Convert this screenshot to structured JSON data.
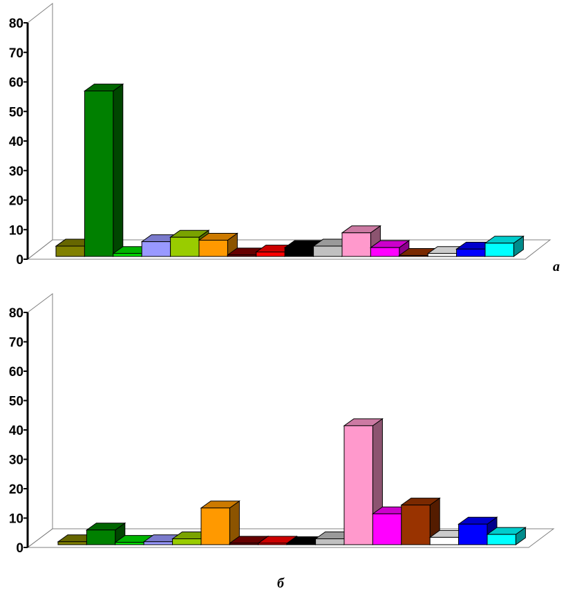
{
  "chart_data": [
    {
      "type": "bar",
      "panel_label": "а",
      "ylim": [
        0,
        80
      ],
      "yticks": [
        "0",
        "10",
        "20",
        "30",
        "40",
        "50",
        "60",
        "70",
        "80"
      ],
      "grid": false,
      "values": [
        3.5,
        56,
        1,
        5,
        6.5,
        5.5,
        0.5,
        1.5,
        3,
        3.5,
        8,
        3,
        0.3,
        1,
        2.5,
        4.5
      ],
      "colors": [
        "#808000",
        "#008000",
        "#00e000",
        "#9999ff",
        "#99cc00",
        "#ff9900",
        "#800000",
        "#ff0000",
        "#000000",
        "#c0c0c0",
        "#ff99cc",
        "#ff00ff",
        "#993300",
        "#ffffff",
        "#0000ff",
        "#00ffff"
      ]
    },
    {
      "type": "bar",
      "panel_label": "б",
      "ylim": [
        0,
        80
      ],
      "yticks": [
        "0",
        "10",
        "20",
        "30",
        "40",
        "50",
        "60",
        "70",
        "80"
      ],
      "grid": false,
      "values": [
        1,
        5,
        0.8,
        1,
        2,
        12.5,
        0.5,
        0.5,
        0.3,
        2,
        40.5,
        10.5,
        13.5,
        2.5,
        7,
        3.5
      ],
      "colors": [
        "#808000",
        "#008000",
        "#00e000",
        "#9999ff",
        "#99cc00",
        "#ff9900",
        "#800000",
        "#ff0000",
        "#000000",
        "#c0c0c0",
        "#ff99cc",
        "#ff00ff",
        "#993300",
        "#ffffff",
        "#0000ff",
        "#00ffff"
      ]
    }
  ]
}
